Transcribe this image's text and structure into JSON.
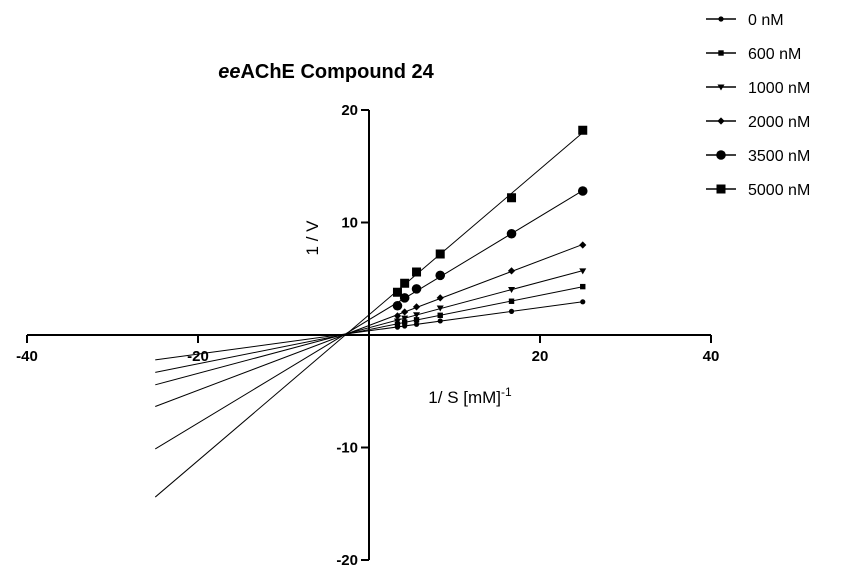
{
  "chart_data": {
    "type": "line",
    "title_italic": "ee",
    "title_rest": "AChE   Compound 24",
    "xlabel": "1/ S [mM]",
    "xlabel_sup": "-1",
    "ylabel": "1 / V",
    "xlim": [
      -40,
      40
    ],
    "ylim": [
      -20,
      20
    ],
    "x_ticks": [
      -40,
      -20,
      20,
      40
    ],
    "x_tick_labels": [
      "-40",
      "-20",
      "20",
      "40"
    ],
    "y_ticks": [
      20,
      10,
      -10,
      -20
    ],
    "y_tick_labels": [
      "20",
      "10",
      "-10",
      "-20"
    ],
    "grid": false,
    "legend_position": "top-right",
    "x": [
      3.33,
      4.17,
      5.56,
      8.33,
      16.67,
      25
    ],
    "series": [
      {
        "name": "0 nM",
        "marker": "circle-small",
        "values": [
          0.7,
          0.8,
          0.95,
          1.25,
          2.1,
          2.95
        ],
        "line_from_x": -25,
        "line_to_x": 25
      },
      {
        "name": "600 nM",
        "marker": "square-small",
        "values": [
          0.95,
          1.15,
          1.35,
          1.75,
          3.0,
          4.3
        ],
        "line_from_x": -25,
        "line_to_x": 25
      },
      {
        "name": "1000 nM",
        "marker": "triangle-down",
        "values": [
          1.25,
          1.5,
          1.8,
          2.4,
          4.05,
          5.7
        ],
        "line_from_x": -25,
        "line_to_x": 25
      },
      {
        "name": "2000 nM",
        "marker": "diamond",
        "values": [
          1.7,
          2.05,
          2.5,
          3.3,
          5.7,
          8.0
        ],
        "line_from_x": -25,
        "line_to_x": 25
      },
      {
        "name": "3500 nM",
        "marker": "circle-large",
        "values": [
          2.6,
          3.3,
          4.1,
          5.3,
          9.0,
          12.8
        ],
        "line_from_x": -25,
        "line_to_x": 25
      },
      {
        "name": "5000 nM",
        "marker": "square-large",
        "values": [
          3.8,
          4.6,
          5.6,
          7.2,
          12.2,
          18.2
        ],
        "line_from_x": -25,
        "line_to_x": 25
      }
    ]
  }
}
